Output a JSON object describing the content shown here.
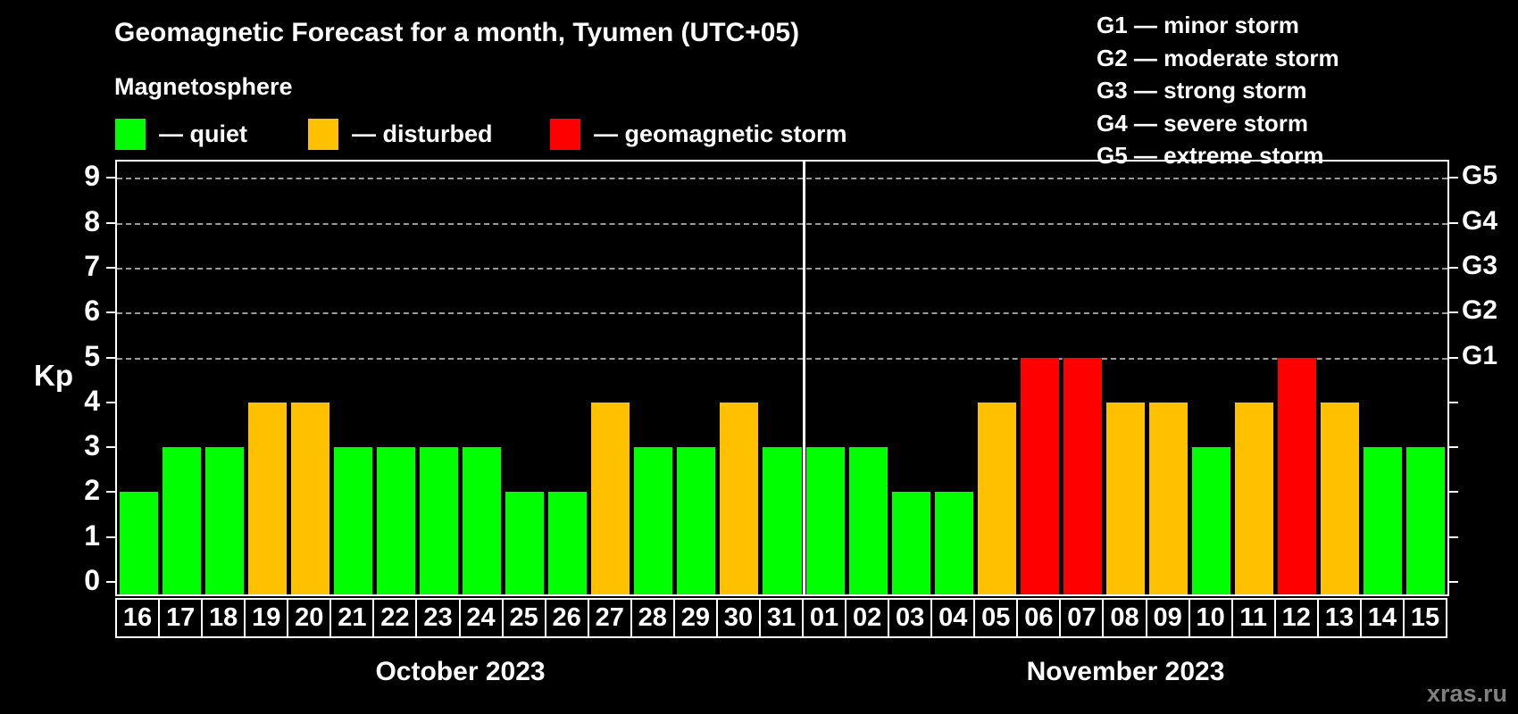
{
  "header": {
    "title": "Geomagnetic Forecast for a month, Tyumen (UTC+05)",
    "subtitle": "Magnetosphere"
  },
  "legend": {
    "items": [
      {
        "status": "quiet",
        "color": "#00ff00",
        "label": "— quiet"
      },
      {
        "status": "disturbed",
        "color": "#ffc000",
        "label": "— disturbed"
      },
      {
        "status": "storm",
        "color": "#ff0000",
        "label": "— geomagnetic storm"
      }
    ]
  },
  "g_legend": {
    "items": [
      "G1 — minor storm",
      "G2 — moderate storm",
      "G3 — strong storm",
      "G4 — severe storm",
      "G5 — extreme storm"
    ]
  },
  "axis": {
    "kp_label": "Kp",
    "left_ticks": [
      0,
      1,
      2,
      3,
      4,
      5,
      6,
      7,
      8,
      9
    ],
    "right_labels": [
      {
        "code": "G1",
        "kp": 5
      },
      {
        "code": "G2",
        "kp": 6
      },
      {
        "code": "G3",
        "kp": 7
      },
      {
        "code": "G4",
        "kp": 8
      },
      {
        "code": "G5",
        "kp": 9
      }
    ]
  },
  "months": [
    {
      "label": "October 2023",
      "days": 16
    },
    {
      "label": "November 2023",
      "days": 15
    }
  ],
  "watermark": "xras.ru",
  "colors": {
    "background": "#000000",
    "quiet": "#00ff00",
    "disturbed": "#ffc000",
    "storm": "#ff0000",
    "grid": "#9a9a9a",
    "axis": "#ffffff",
    "watermark": "#808080"
  },
  "chart_data": {
    "type": "bar",
    "title": "Geomagnetic Forecast for a month, Tyumen (UTC+05)",
    "xlabel": "",
    "ylabel": "Kp",
    "ylim": [
      0,
      9
    ],
    "grid": "dashed horizontal lines at Kp 5,6,7,8,9",
    "gridlines_at_kp": [
      5,
      6,
      7,
      8,
      9
    ],
    "right_axis_labels": {
      "G1": 5,
      "G2": 6,
      "G3": 7,
      "G4": 8,
      "G5": 9
    },
    "legend_position": "top-left",
    "month_split_index": 16,
    "categories": [
      "16",
      "17",
      "18",
      "19",
      "20",
      "21",
      "22",
      "23",
      "24",
      "25",
      "26",
      "27",
      "28",
      "29",
      "30",
      "31",
      "01",
      "02",
      "03",
      "04",
      "05",
      "06",
      "07",
      "08",
      "09",
      "10",
      "11",
      "12",
      "13",
      "14",
      "15"
    ],
    "values": [
      2,
      3,
      3,
      4,
      4,
      3,
      3,
      3,
      3,
      2,
      2,
      4,
      3,
      3,
      4,
      3,
      3,
      3,
      2,
      2,
      4,
      5,
      5,
      4,
      4,
      3,
      4,
      5,
      4,
      3,
      3
    ],
    "statuses": [
      "quiet",
      "quiet",
      "quiet",
      "disturbed",
      "disturbed",
      "quiet",
      "quiet",
      "quiet",
      "quiet",
      "quiet",
      "quiet",
      "disturbed",
      "quiet",
      "quiet",
      "disturbed",
      "quiet",
      "quiet",
      "quiet",
      "quiet",
      "quiet",
      "disturbed",
      "storm",
      "storm",
      "disturbed",
      "disturbed",
      "quiet",
      "disturbed",
      "storm",
      "disturbed",
      "quiet",
      "quiet"
    ]
  }
}
